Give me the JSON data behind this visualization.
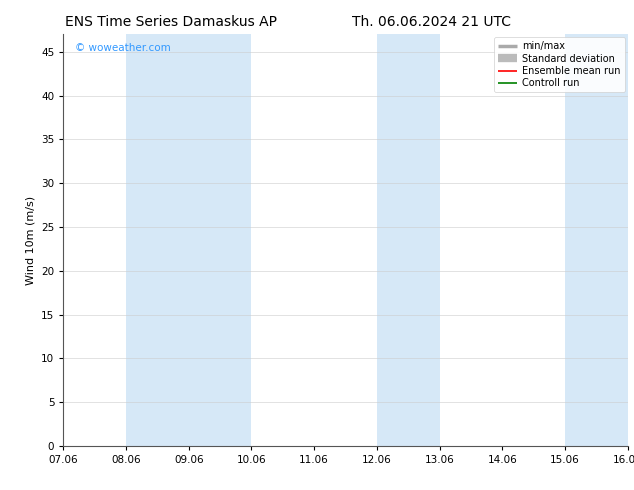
{
  "title_left": "ENS Time Series Damaskus AP",
  "title_right": "Th. 06.06.2024 21 UTC",
  "ylabel": "Wind 10m (m/s)",
  "xlim_min": 0,
  "xlim_max": 9,
  "ylim_min": 0,
  "ylim_max": 47,
  "yticks": [
    0,
    5,
    10,
    15,
    20,
    25,
    30,
    35,
    40,
    45
  ],
  "xtick_labels": [
    "07.06",
    "08.06",
    "09.06",
    "10.06",
    "11.06",
    "12.06",
    "13.06",
    "14.06",
    "15.06",
    "16.06"
  ],
  "shaded_bands": [
    {
      "x_start": 1,
      "x_end": 3,
      "color": "#d6e8f7"
    },
    {
      "x_start": 5,
      "x_end": 6,
      "color": "#d6e8f7"
    },
    {
      "x_start": 8,
      "x_end": 9,
      "color": "#d6e8f7"
    }
  ],
  "watermark_text": "© woweather.com",
  "watermark_color": "#3399ff",
  "background_color": "#ffffff",
  "plot_bg_color": "#ffffff",
  "legend_items": [
    {
      "label": "min/max",
      "color": "#aaaaaa",
      "lw": 2.5,
      "style": "solid"
    },
    {
      "label": "Standard deviation",
      "color": "#bbbbbb",
      "lw": 6,
      "style": "solid"
    },
    {
      "label": "Ensemble mean run",
      "color": "#ff0000",
      "lw": 1.2,
      "style": "solid"
    },
    {
      "label": "Controll run",
      "color": "#008000",
      "lw": 1.2,
      "style": "solid"
    }
  ],
  "title_fontsize": 10,
  "axis_fontsize": 8,
  "tick_fontsize": 7.5,
  "legend_fontsize": 7
}
